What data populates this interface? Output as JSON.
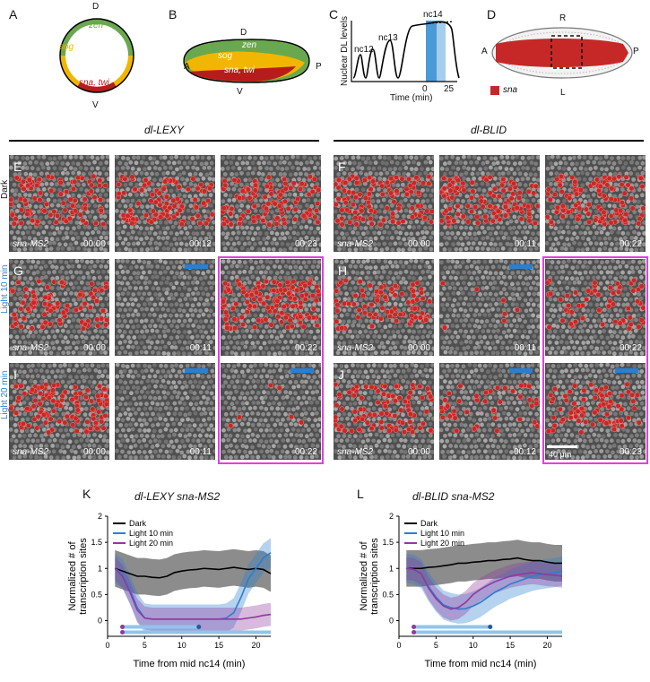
{
  "panels": {
    "A": {
      "label": "A",
      "top": "D",
      "bottom": "V",
      "zen": "zen",
      "sog": "sog",
      "sna": "sna, twi",
      "colors": {
        "zen": "#6aa84f",
        "sog": "#f1b600",
        "sna": "#b71c1c"
      }
    },
    "B": {
      "label": "B",
      "top": "D",
      "bottom": "V",
      "left": "A",
      "right": "P",
      "zen": "zen",
      "sog": "sog",
      "sna": "sna, twi"
    },
    "C": {
      "label": "C",
      "ylabel": "Nuclear DL levels",
      "xlabel": "Time (min)",
      "ticks": [
        "0",
        "25"
      ],
      "cycles": [
        "nc12",
        "nc13",
        "nc14"
      ]
    },
    "D": {
      "label": "D",
      "top": "R",
      "bottom": "L",
      "left": "A",
      "right": "P",
      "legend": "sna"
    }
  },
  "groups": {
    "left": "dl-LEXY",
    "right": "dl-BLID"
  },
  "row_labels": {
    "dark": "Dark",
    "light10": "Light 10 min",
    "light20": "Light 20 min"
  },
  "reporter": "sna-MS2",
  "scale_bar": "40 μm",
  "tiles": {
    "E": {
      "label": "E",
      "times": [
        "00:00",
        "00:12",
        "00:23"
      ]
    },
    "F": {
      "label": "F",
      "times": [
        "00:00",
        "00:11",
        "00:22"
      ]
    },
    "G": {
      "label": "G",
      "times": [
        "00:00",
        "00:11",
        "00:22"
      ]
    },
    "H": {
      "label": "H",
      "times": [
        "00:00",
        "00:11",
        "00:22"
      ]
    },
    "I": {
      "label": "I",
      "times": [
        "00:00",
        "00:11",
        "00:22"
      ]
    },
    "J": {
      "label": "J",
      "times": [
        "00:00",
        "00:12",
        "00:23"
      ]
    }
  },
  "chart_data": [
    {
      "panel": "K",
      "type": "line",
      "title": "dl-LEXY sna-MS2",
      "xlabel": "Time from mid nc14 (min)",
      "ylabel": "Normalized # of transcription sites",
      "xlim": [
        0,
        22
      ],
      "ylim": [
        -0.3,
        2
      ],
      "xticks": [
        0,
        5,
        10,
        15,
        20
      ],
      "yticks": [
        0,
        0.5,
        1,
        1.5,
        2
      ],
      "x": [
        1,
        2,
        3,
        4,
        5,
        6,
        7,
        8,
        9,
        10,
        11,
        12,
        13,
        14,
        15,
        16,
        17,
        18,
        19,
        20,
        21,
        22
      ],
      "series": [
        {
          "name": "Dark",
          "color": "#000000",
          "values": [
            1.0,
            0.95,
            0.9,
            0.85,
            0.85,
            0.83,
            0.82,
            0.85,
            0.92,
            0.95,
            0.97,
            0.98,
            1.0,
            0.99,
            0.98,
            1.0,
            1.02,
            1.0,
            0.98,
            1.0,
            0.98,
            0.9
          ]
        },
        {
          "name": "Light 10 min",
          "color": "#2a7fd0",
          "values": [
            1.0,
            0.9,
            0.6,
            0.25,
            0.05,
            0.03,
            0.03,
            0.03,
            0.03,
            0.03,
            0.03,
            0.03,
            0.03,
            0.03,
            0.03,
            0.05,
            0.15,
            0.45,
            0.8,
            1.0,
            1.2,
            1.3
          ]
        },
        {
          "name": "Light 20 min",
          "color": "#8e3a9e",
          "values": [
            1.0,
            0.85,
            0.55,
            0.2,
            0.05,
            0.03,
            0.03,
            0.03,
            0.03,
            0.03,
            0.03,
            0.03,
            0.03,
            0.03,
            0.03,
            0.03,
            0.03,
            0.03,
            0.05,
            0.07,
            0.1,
            0.12
          ]
        }
      ],
      "light_bars": [
        {
          "start": 2,
          "end": 12.3
        },
        {
          "start": 2,
          "end": 22
        }
      ]
    },
    {
      "panel": "L",
      "type": "line",
      "title": "dl-BLID sna-MS2",
      "xlabel": "Time from mid nc14 (min)",
      "ylabel": "Normalized # of transcription sites",
      "xlim": [
        0,
        22
      ],
      "ylim": [
        -0.3,
        2
      ],
      "xticks": [
        0,
        5,
        10,
        15,
        20
      ],
      "yticks": [
        0,
        0.5,
        1,
        1.5,
        2
      ],
      "x": [
        1,
        2,
        3,
        4,
        5,
        6,
        7,
        8,
        9,
        10,
        11,
        12,
        13,
        14,
        15,
        16,
        17,
        18,
        19,
        20,
        21,
        22
      ],
      "series": [
        {
          "name": "Dark",
          "color": "#000000",
          "values": [
            1.0,
            1.0,
            1.0,
            1.02,
            1.03,
            1.05,
            1.07,
            1.1,
            1.1,
            1.12,
            1.13,
            1.15,
            1.15,
            1.17,
            1.18,
            1.2,
            1.17,
            1.15,
            1.15,
            1.12,
            1.1,
            1.1
          ]
        },
        {
          "name": "Light 10 min",
          "color": "#2a7fd0",
          "values": [
            1.0,
            0.98,
            0.9,
            0.65,
            0.45,
            0.3,
            0.25,
            0.22,
            0.23,
            0.28,
            0.35,
            0.45,
            0.55,
            0.62,
            0.7,
            0.75,
            0.8,
            0.85,
            0.88,
            0.9,
            0.92,
            0.95
          ]
        },
        {
          "name": "Light 20 min",
          "color": "#8e3a9e",
          "values": [
            1.0,
            0.98,
            0.9,
            0.62,
            0.42,
            0.28,
            0.22,
            0.25,
            0.35,
            0.5,
            0.6,
            0.68,
            0.75,
            0.8,
            0.85,
            0.88,
            0.9,
            0.92,
            0.9,
            0.88,
            0.87,
            0.85
          ]
        }
      ],
      "light_bars": [
        {
          "start": 2,
          "end": 12.3
        },
        {
          "start": 2,
          "end": 22
        }
      ]
    }
  ]
}
